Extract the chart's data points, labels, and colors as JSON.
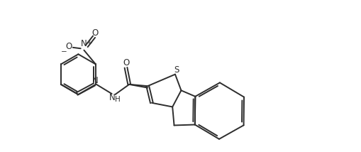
{
  "background": "#ffffff",
  "line_color": "#2d2d2d",
  "line_width": 1.4,
  "label_fontsize": 8.5,
  "sup_fontsize": 6.5,
  "fig_width": 5.09,
  "fig_height": 2.14,
  "dpi": 100,
  "xlim": [
    0,
    10.5
  ],
  "ylim": [
    -0.3,
    4.2
  ]
}
